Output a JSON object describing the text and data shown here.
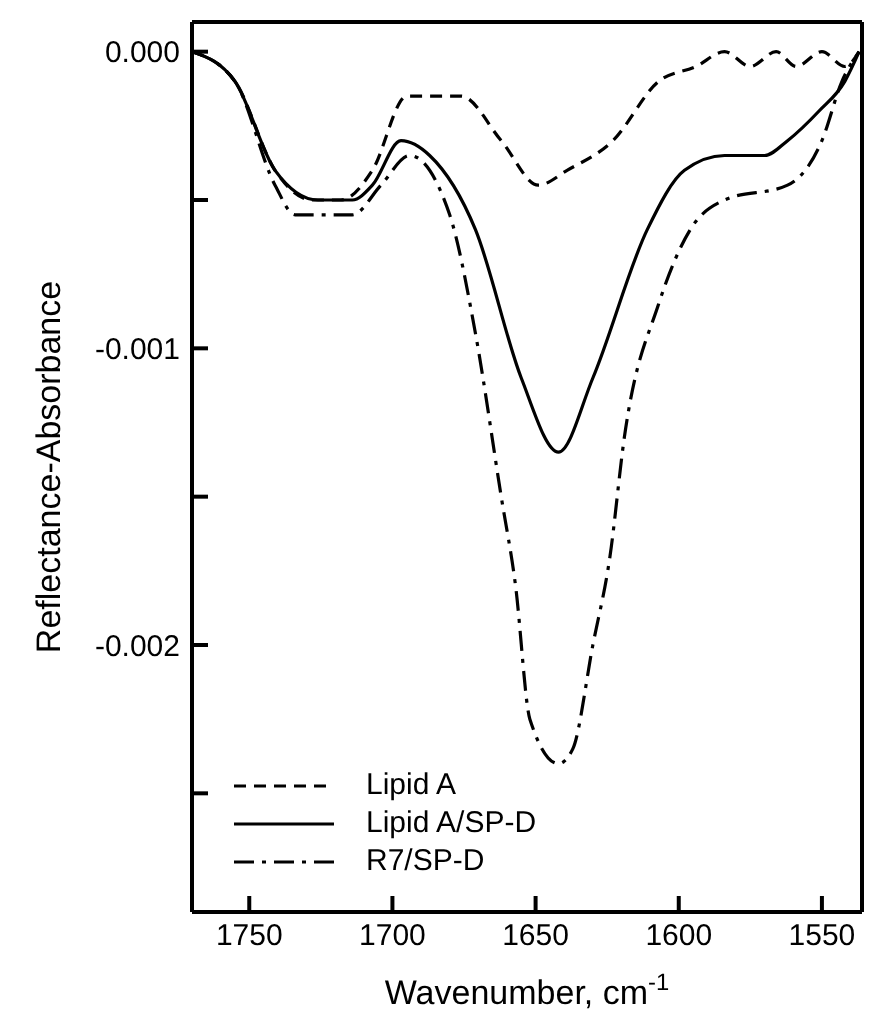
{
  "chart_data": {
    "type": "line",
    "xlabel": "Wavenumber, cm$^{-1}$",
    "ylabel": "Reflectance-Absorbance",
    "xlim": [
      1770,
      1536
    ],
    "xticks": [
      1750,
      1700,
      1650,
      1600,
      1550
    ],
    "ylim": [
      -0.0029,
      0.0001
    ],
    "yticks": [
      {
        "value": 0,
        "label": "0.000"
      },
      {
        "value": -0.0005,
        "label": null
      },
      {
        "value": -0.001,
        "label": "-0.001"
      },
      {
        "value": -0.0015,
        "label": null
      },
      {
        "value": -0.002,
        "label": "-0.002"
      },
      {
        "value": -0.0025,
        "label": null
      }
    ],
    "grid": false,
    "legend": "bottom left",
    "marker": "none",
    "series": [
      {
        "name": "Lipid A",
        "color": "#000000",
        "line_style": "dashed",
        "x": [
          1770,
          1755,
          1741,
          1728,
          1718,
          1707,
          1695,
          1689,
          1676,
          1662,
          1649,
          1639,
          1623,
          1607,
          1594,
          1584,
          1575,
          1566,
          1559,
          1550,
          1542,
          1537
        ],
        "values": [
          0,
          -0.0001,
          -0.0004,
          -0.0005,
          -0.0005,
          -0.0004,
          -0.00015,
          -0.00015,
          -0.00015,
          -0.0003,
          -0.00045,
          -0.0004,
          -0.0003,
          -0.0001,
          -5e-05,
          0,
          -5e-05,
          0,
          -5e-05,
          0,
          -5e-05,
          0
        ]
      },
      {
        "name": "Lipid A/SP-D",
        "color": "#000000",
        "line_style": "solid",
        "x": [
          1770,
          1755,
          1741,
          1726,
          1714,
          1707,
          1697,
          1687,
          1671,
          1655,
          1642,
          1630,
          1611,
          1598,
          1584,
          1570,
          1562,
          1551,
          1542,
          1537
        ],
        "values": [
          0,
          -0.0001,
          -0.0004,
          -0.0005,
          -0.0005,
          -0.00045,
          -0.0003,
          -0.00035,
          -0.0006,
          -0.0011,
          -0.00135,
          -0.0011,
          -0.0006,
          -0.0004,
          -0.00035,
          -0.00035,
          -0.0003,
          -0.0002,
          -0.0001,
          0
        ]
      },
      {
        "name": "R7/SP-D",
        "color": "#000000",
        "line_style": "dashdot",
        "x": [
          1770,
          1755,
          1741,
          1734,
          1714,
          1704,
          1694,
          1680,
          1671,
          1662,
          1657,
          1652,
          1642,
          1637,
          1630,
          1624,
          1619,
          1607,
          1596,
          1584,
          1562,
          1550,
          1543,
          1537
        ],
        "values": [
          0,
          -0.0001,
          -0.00045,
          -0.00055,
          -0.00055,
          -0.00045,
          -0.00035,
          -0.00055,
          -0.00095,
          -0.0015,
          -0.0018,
          -0.00225,
          -0.0024,
          -0.00235,
          -0.002,
          -0.0017,
          -0.0013,
          -0.00085,
          -0.0006,
          -0.0005,
          -0.00045,
          -0.0003,
          -0.0001,
          0
        ]
      }
    ]
  }
}
